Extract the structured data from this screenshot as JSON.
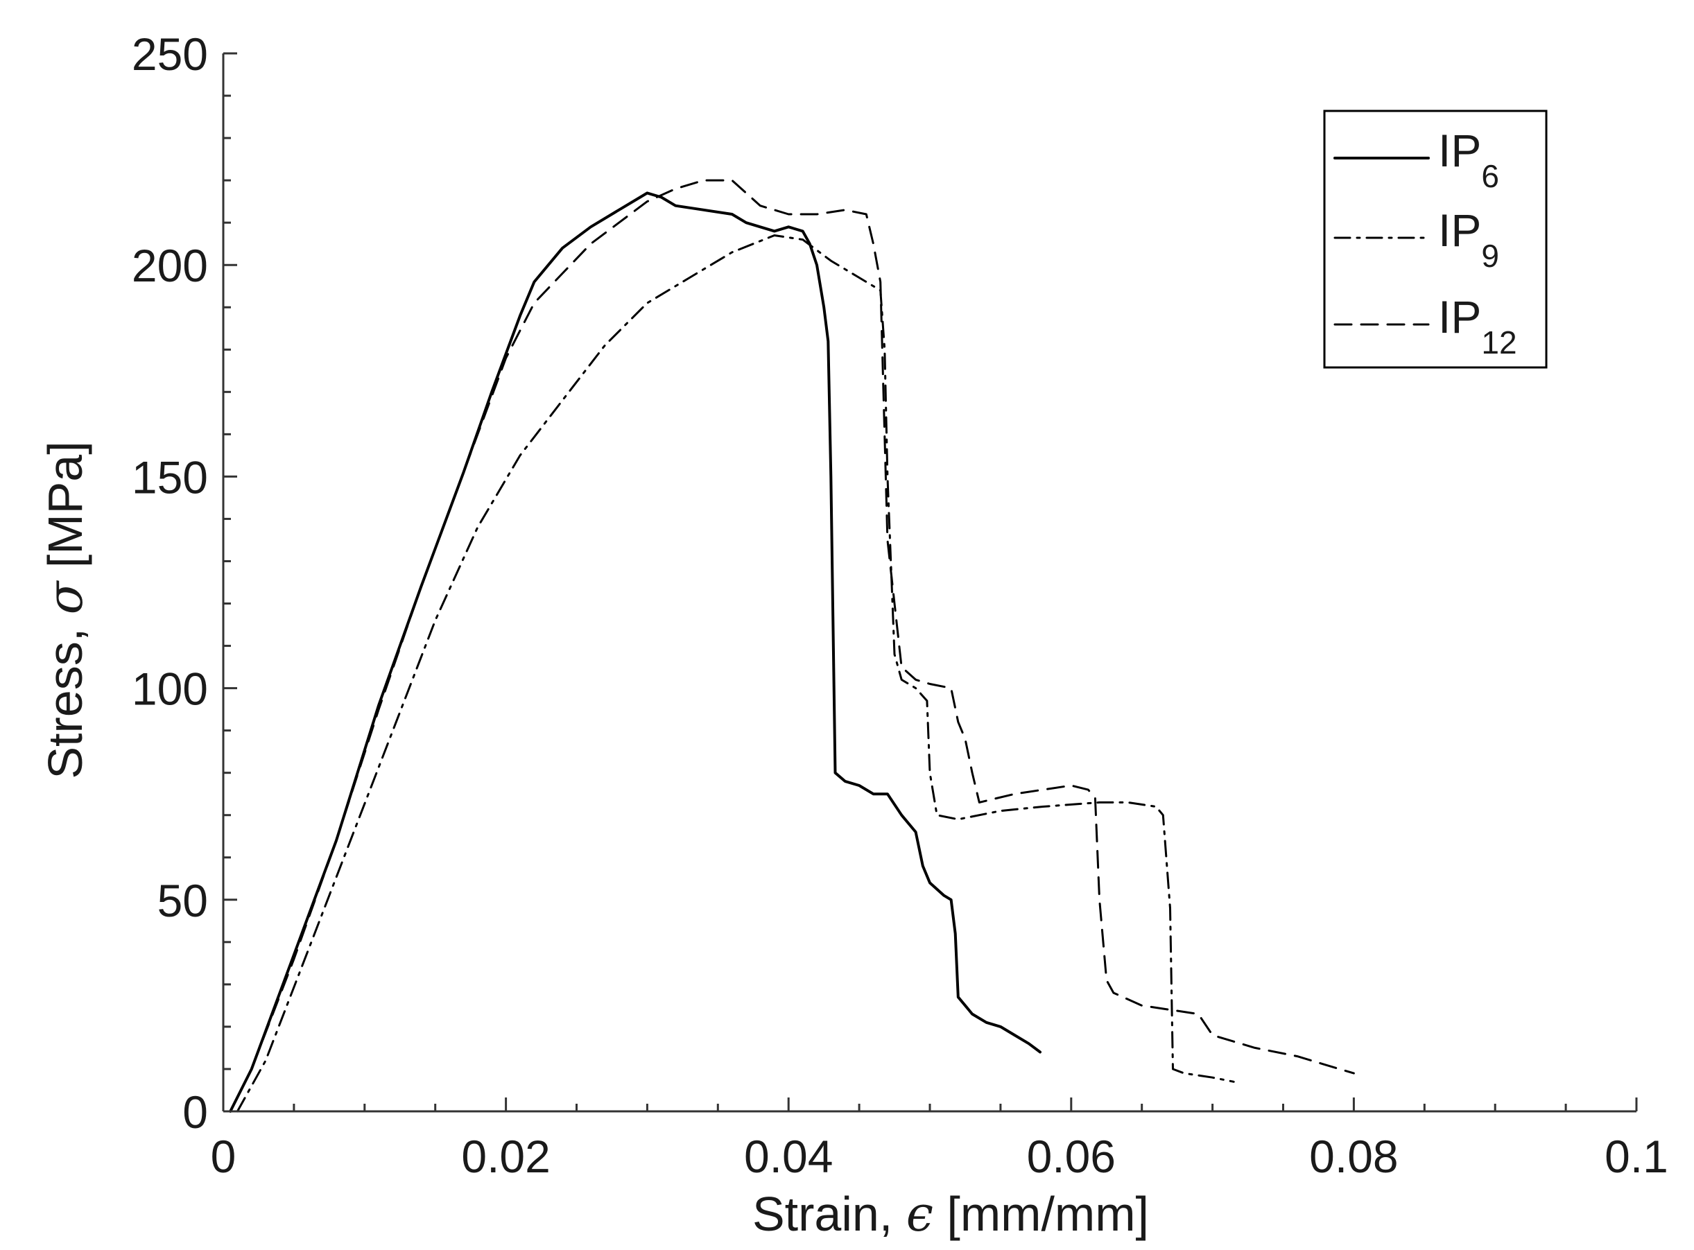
{
  "chart_data": {
    "type": "line",
    "xlabel_prefix": "Strain, ",
    "xlabel_symbol": "ϵ",
    "xlabel_suffix": " [mm/mm]",
    "ylabel_prefix": "Stress, ",
    "ylabel_symbol": "σ",
    "ylabel_suffix": " [MPa]",
    "xlim": [
      0,
      0.1
    ],
    "ylim": [
      0,
      250
    ],
    "x_ticks": [
      0,
      0.02,
      0.04,
      0.06,
      0.08,
      0.1
    ],
    "x_tick_labels": [
      "0",
      "0.02",
      "0.04",
      "0.06",
      "0.08",
      "0.1"
    ],
    "y_ticks": [
      0,
      50,
      100,
      150,
      200,
      250
    ],
    "y_tick_labels": [
      "0",
      "50",
      "100",
      "150",
      "200",
      "250"
    ],
    "x_minor_step": 0.005,
    "y_minor_step": 10,
    "grid": false,
    "legend_position": "top-right",
    "series": [
      {
        "name": "IP",
        "name_sub": "6",
        "line_style": "solid",
        "color": "#000000",
        "points": [
          [
            0.0005,
            0
          ],
          [
            0.002,
            10
          ],
          [
            0.005,
            37
          ],
          [
            0.008,
            64
          ],
          [
            0.011,
            96
          ],
          [
            0.014,
            124
          ],
          [
            0.017,
            151
          ],
          [
            0.019,
            170
          ],
          [
            0.021,
            188
          ],
          [
            0.022,
            196
          ],
          [
            0.024,
            204
          ],
          [
            0.026,
            209
          ],
          [
            0.028,
            213
          ],
          [
            0.03,
            217
          ],
          [
            0.031,
            216
          ],
          [
            0.032,
            214
          ],
          [
            0.034,
            213
          ],
          [
            0.036,
            212
          ],
          [
            0.037,
            210
          ],
          [
            0.038,
            209
          ],
          [
            0.039,
            208
          ],
          [
            0.04,
            209
          ],
          [
            0.041,
            208
          ],
          [
            0.0415,
            205
          ],
          [
            0.042,
            200
          ],
          [
            0.0425,
            190
          ],
          [
            0.0428,
            182
          ],
          [
            0.043,
            150
          ],
          [
            0.0433,
            80
          ],
          [
            0.044,
            78
          ],
          [
            0.045,
            77
          ],
          [
            0.046,
            75
          ],
          [
            0.047,
            75
          ],
          [
            0.048,
            70
          ],
          [
            0.049,
            66
          ],
          [
            0.0495,
            58
          ],
          [
            0.05,
            54
          ],
          [
            0.051,
            51
          ],
          [
            0.0515,
            50
          ],
          [
            0.0518,
            42
          ],
          [
            0.052,
            27
          ],
          [
            0.053,
            23
          ],
          [
            0.054,
            21
          ],
          [
            0.055,
            20
          ],
          [
            0.056,
            18
          ],
          [
            0.057,
            16
          ],
          [
            0.0578,
            14
          ]
        ]
      },
      {
        "name": "IP",
        "name_sub": "9",
        "line_style": "dash-dot",
        "color": "#000000",
        "points": [
          [
            0.001,
            0
          ],
          [
            0.003,
            12
          ],
          [
            0.006,
            38
          ],
          [
            0.009,
            64
          ],
          [
            0.012,
            90
          ],
          [
            0.015,
            116
          ],
          [
            0.018,
            138
          ],
          [
            0.021,
            155
          ],
          [
            0.024,
            168
          ],
          [
            0.027,
            181
          ],
          [
            0.03,
            191
          ],
          [
            0.033,
            197
          ],
          [
            0.036,
            203
          ],
          [
            0.039,
            207
          ],
          [
            0.041,
            206
          ],
          [
            0.043,
            201
          ],
          [
            0.045,
            197
          ],
          [
            0.0465,
            194
          ],
          [
            0.0468,
            180
          ],
          [
            0.047,
            150
          ],
          [
            0.0475,
            108
          ],
          [
            0.048,
            102
          ],
          [
            0.049,
            100
          ],
          [
            0.0498,
            97
          ],
          [
            0.05,
            80
          ],
          [
            0.0505,
            70
          ],
          [
            0.052,
            69
          ],
          [
            0.055,
            71
          ],
          [
            0.058,
            72
          ],
          [
            0.062,
            73
          ],
          [
            0.064,
            73
          ],
          [
            0.066,
            72
          ],
          [
            0.0665,
            70
          ],
          [
            0.067,
            48
          ],
          [
            0.0672,
            10
          ],
          [
            0.068,
            9
          ],
          [
            0.07,
            8
          ],
          [
            0.0715,
            7
          ]
        ]
      },
      {
        "name": "IP",
        "name_sub": "12",
        "line_style": "dashed",
        "color": "#000000",
        "points": [
          [
            0.0005,
            0
          ],
          [
            0.002,
            10
          ],
          [
            0.005,
            36
          ],
          [
            0.008,
            64
          ],
          [
            0.011,
            95
          ],
          [
            0.014,
            124
          ],
          [
            0.017,
            151
          ],
          [
            0.02,
            178
          ],
          [
            0.022,
            191
          ],
          [
            0.024,
            198
          ],
          [
            0.026,
            205
          ],
          [
            0.028,
            210
          ],
          [
            0.03,
            215
          ],
          [
            0.032,
            218
          ],
          [
            0.034,
            220
          ],
          [
            0.036,
            220
          ],
          [
            0.038,
            214
          ],
          [
            0.04,
            212
          ],
          [
            0.042,
            212
          ],
          [
            0.044,
            213
          ],
          [
            0.0455,
            212
          ],
          [
            0.046,
            205
          ],
          [
            0.0465,
            196
          ],
          [
            0.047,
            135
          ],
          [
            0.0475,
            120
          ],
          [
            0.048,
            105
          ],
          [
            0.049,
            102
          ],
          [
            0.05,
            101
          ],
          [
            0.0515,
            100
          ],
          [
            0.052,
            92
          ],
          [
            0.0525,
            88
          ],
          [
            0.053,
            80
          ],
          [
            0.0535,
            73
          ],
          [
            0.056,
            75
          ],
          [
            0.058,
            76
          ],
          [
            0.06,
            77
          ],
          [
            0.0612,
            76
          ],
          [
            0.0617,
            74
          ],
          [
            0.062,
            50
          ],
          [
            0.0625,
            31
          ],
          [
            0.063,
            28
          ],
          [
            0.065,
            25
          ],
          [
            0.067,
            24
          ],
          [
            0.069,
            23
          ],
          [
            0.07,
            18
          ],
          [
            0.073,
            15
          ],
          [
            0.076,
            13
          ],
          [
            0.078,
            11
          ],
          [
            0.08,
            9
          ]
        ]
      }
    ]
  }
}
